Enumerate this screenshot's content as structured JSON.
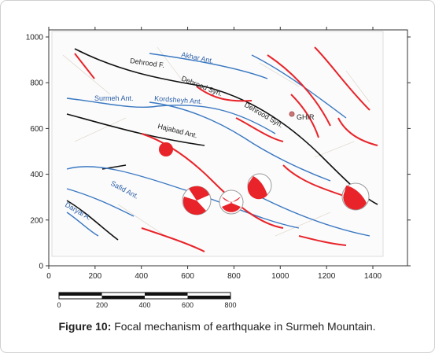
{
  "figure": {
    "xticks": [
      0,
      200,
      400,
      600,
      800,
      1000,
      1200,
      1400
    ],
    "yticks": [
      0,
      200,
      400,
      600,
      800,
      1000
    ],
    "map_labels": [
      "Akhar Ant.",
      "Dehrood F.",
      "Dehrood Syn.",
      "Surmeh Ant.",
      "Kordsheyh Ant.",
      "Dehrood Syn.",
      "GHIR",
      "Hajabad Ant.",
      "Safid Ant.",
      "Daryal A."
    ],
    "scale_bar": [
      0,
      200,
      400,
      600,
      800
    ],
    "caption": {
      "label": "Figure 10:",
      "text": "Focal mechanism of earthquake in Surmeh Mountain."
    }
  }
}
